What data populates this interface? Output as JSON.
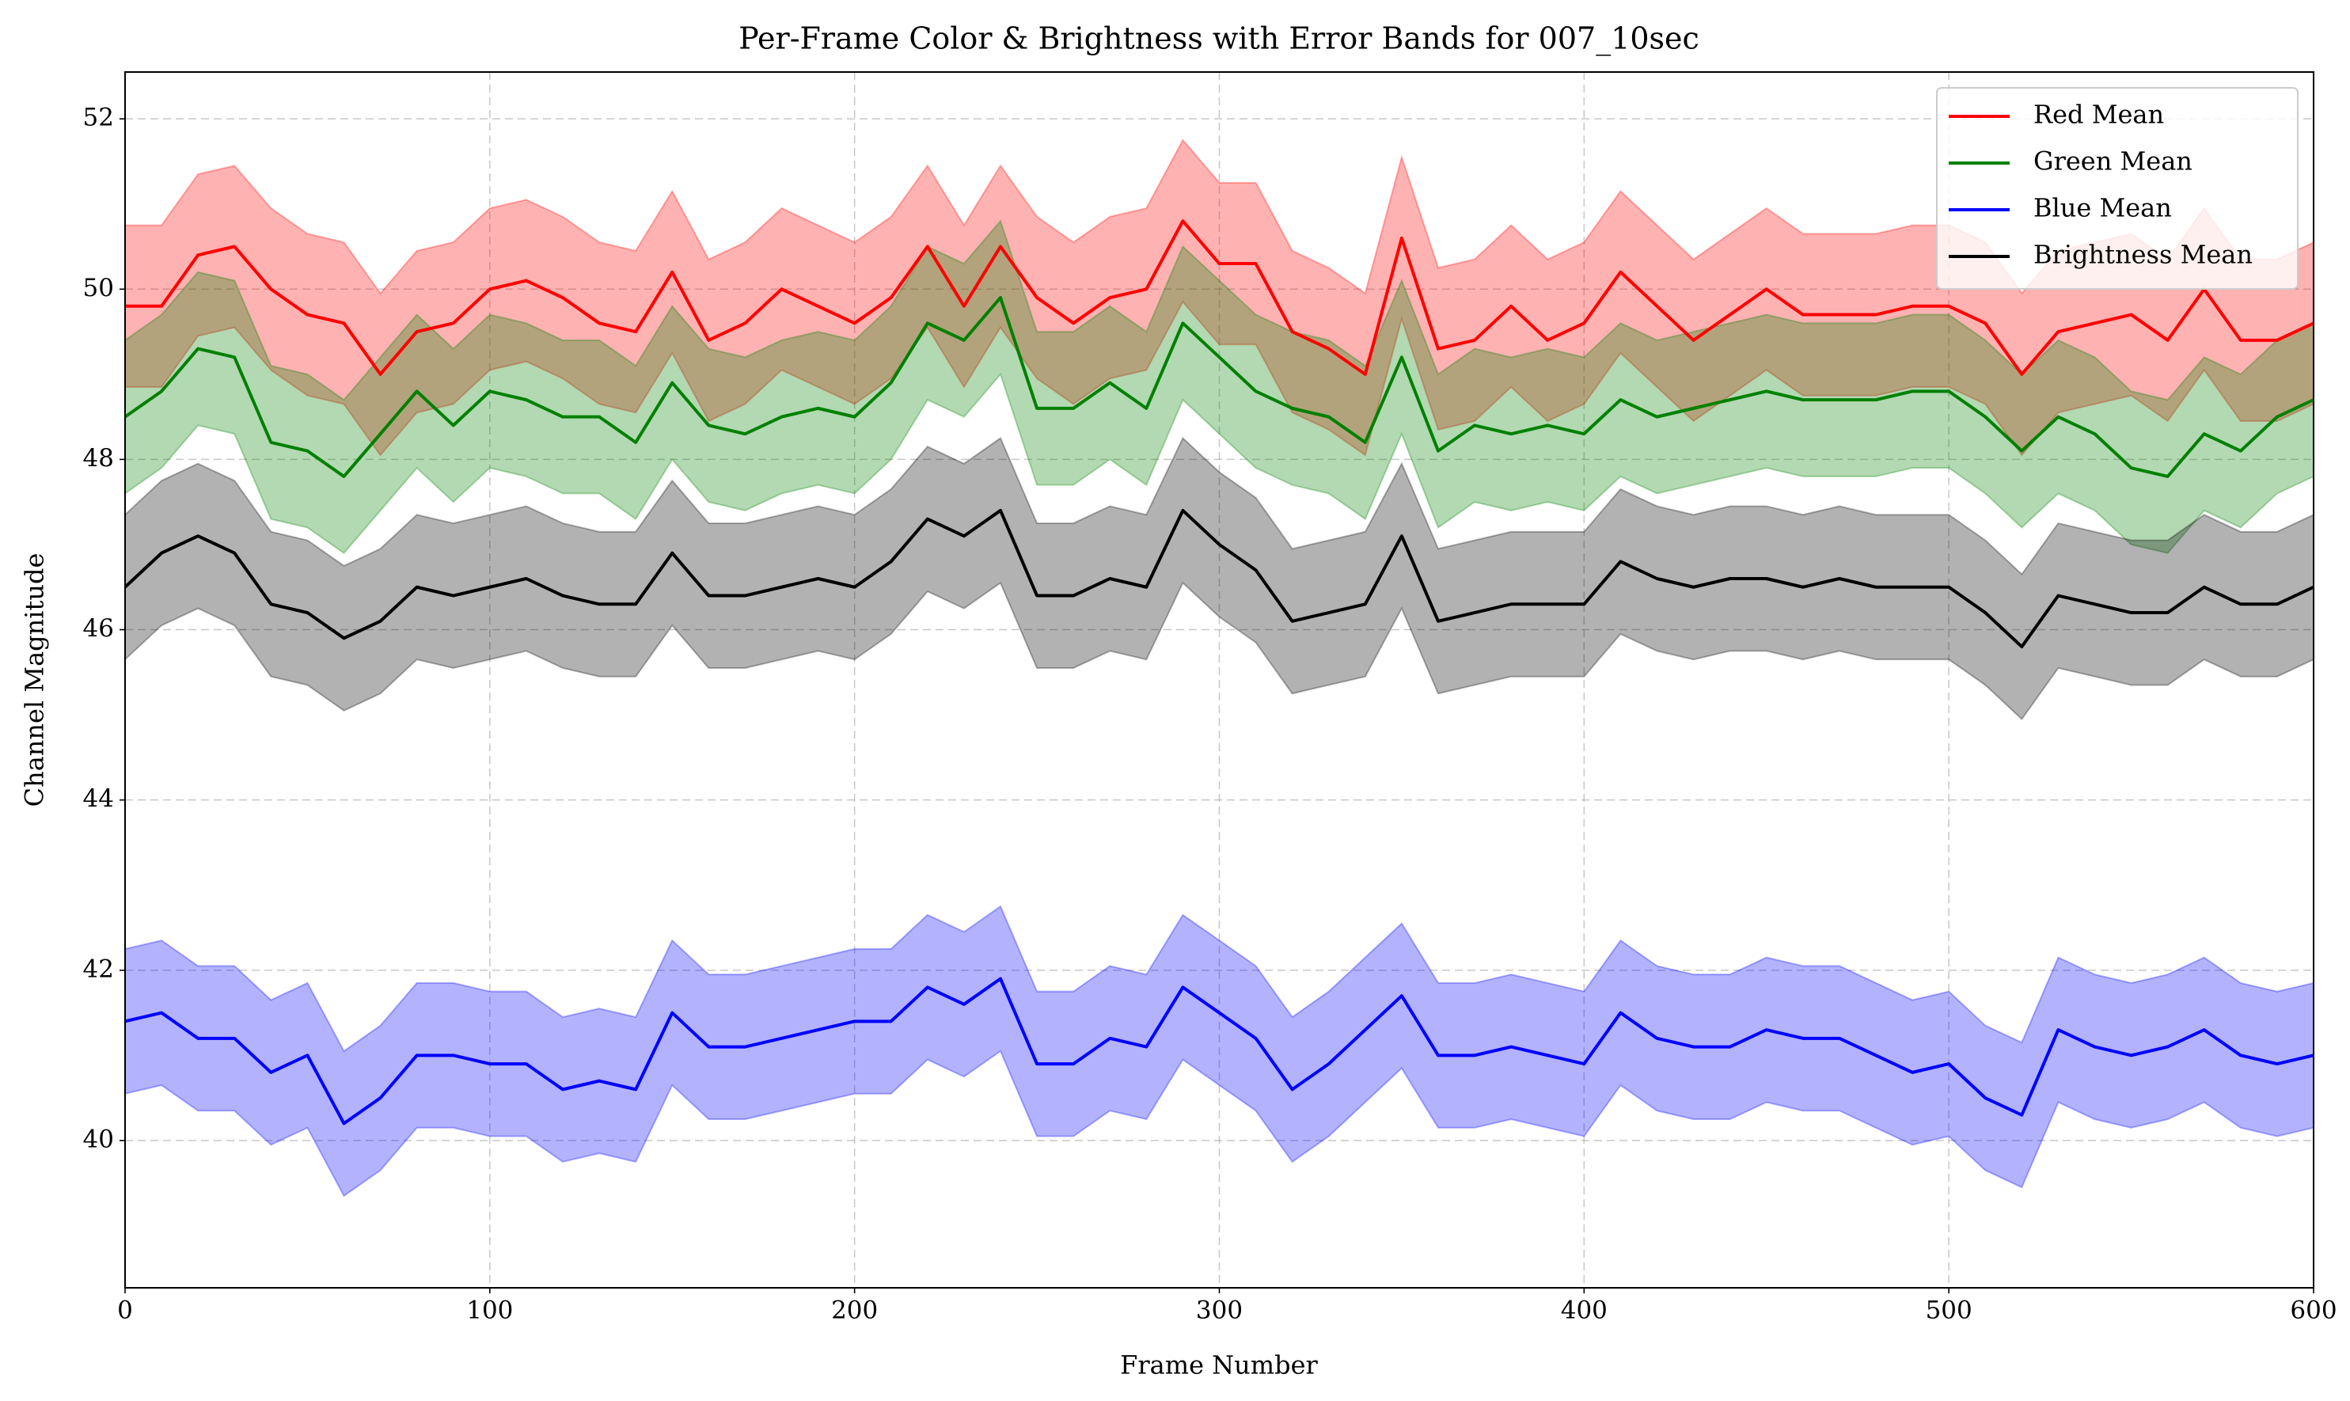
{
  "chart_data": {
    "type": "line",
    "title": "Per-Frame Color & Brightness with Error Bands for 007_10sec",
    "xlabel": "Frame Number",
    "ylabel": "Channel Magnitude",
    "xlim": [
      0,
      600
    ],
    "ylim": [
      38.27,
      52.55
    ],
    "xticks": [
      0,
      100,
      200,
      300,
      400,
      500,
      600
    ],
    "yticks": [
      40,
      42,
      44,
      46,
      48,
      50,
      52
    ],
    "grid": true,
    "legend": "upper right",
    "x": [
      0,
      10,
      20,
      30,
      40,
      50,
      60,
      70,
      80,
      90,
      100,
      110,
      120,
      130,
      140,
      150,
      160,
      170,
      180,
      190,
      200,
      210,
      220,
      230,
      240,
      250,
      260,
      270,
      280,
      290,
      300,
      310,
      320,
      330,
      340,
      350,
      360,
      370,
      380,
      390,
      400,
      410,
      420,
      430,
      440,
      450,
      460,
      470,
      480,
      490,
      500,
      510,
      520,
      530,
      540,
      550,
      560,
      570,
      580,
      590,
      600
    ],
    "series": [
      {
        "name": "Red Mean",
        "color": "#ff0000",
        "values": [
          49.8,
          49.8,
          50.4,
          50.5,
          50.0,
          49.7,
          49.6,
          49.0,
          49.5,
          49.6,
          50.0,
          50.1,
          49.9,
          49.6,
          49.5,
          50.2,
          49.4,
          49.6,
          50.0,
          49.8,
          49.6,
          49.9,
          50.5,
          49.8,
          50.5,
          49.9,
          49.6,
          49.9,
          50.0,
          50.8,
          50.3,
          50.3,
          49.5,
          49.3,
          49.0,
          50.6,
          49.3,
          49.4,
          49.8,
          49.4,
          49.6,
          50.2,
          49.8,
          49.4,
          49.7,
          50.0,
          49.7,
          49.7,
          49.7,
          49.8,
          49.8,
          49.6,
          49.0,
          49.5,
          49.6,
          49.7,
          49.4,
          50.0,
          49.4,
          49.4,
          49.6
        ],
        "errors": [
          0.95,
          0.95,
          0.95,
          0.95,
          0.95,
          0.95,
          0.95,
          0.95,
          0.95,
          0.95,
          0.95,
          0.95,
          0.95,
          0.95,
          0.95,
          0.95,
          0.95,
          0.95,
          0.95,
          0.95,
          0.95,
          0.95,
          0.95,
          0.95,
          0.95,
          0.95,
          0.95,
          0.95,
          0.95,
          0.95,
          0.95,
          0.95,
          0.95,
          0.95,
          0.95,
          0.95,
          0.95,
          0.95,
          0.95,
          0.95,
          0.95,
          0.95,
          0.95,
          0.95,
          0.95,
          0.95,
          0.95,
          0.95,
          0.95,
          0.95,
          0.95,
          0.95,
          0.95,
          0.95,
          0.95,
          0.95,
          0.95,
          0.95,
          0.95,
          0.95,
          0.95
        ]
      },
      {
        "name": "Green Mean",
        "color": "#008000",
        "values": [
          48.5,
          48.8,
          49.3,
          49.2,
          48.2,
          48.1,
          47.8,
          48.3,
          48.8,
          48.4,
          48.8,
          48.7,
          48.5,
          48.5,
          48.2,
          48.9,
          48.4,
          48.3,
          48.5,
          48.6,
          48.5,
          48.9,
          49.6,
          49.4,
          49.9,
          48.6,
          48.6,
          48.9,
          48.6,
          49.6,
          49.2,
          48.8,
          48.6,
          48.5,
          48.2,
          49.2,
          48.1,
          48.4,
          48.3,
          48.4,
          48.3,
          48.7,
          48.5,
          48.6,
          48.7,
          48.8,
          48.7,
          48.7,
          48.7,
          48.8,
          48.8,
          48.5,
          48.1,
          48.5,
          48.3,
          47.9,
          47.8,
          48.3,
          48.1,
          48.5,
          48.7
        ],
        "errors": [
          0.9,
          0.9,
          0.9,
          0.9,
          0.9,
          0.9,
          0.9,
          0.9,
          0.9,
          0.9,
          0.9,
          0.9,
          0.9,
          0.9,
          0.9,
          0.9,
          0.9,
          0.9,
          0.9,
          0.9,
          0.9,
          0.9,
          0.9,
          0.9,
          0.9,
          0.9,
          0.9,
          0.9,
          0.9,
          0.9,
          0.9,
          0.9,
          0.9,
          0.9,
          0.9,
          0.9,
          0.9,
          0.9,
          0.9,
          0.9,
          0.9,
          0.9,
          0.9,
          0.9,
          0.9,
          0.9,
          0.9,
          0.9,
          0.9,
          0.9,
          0.9,
          0.9,
          0.9,
          0.9,
          0.9,
          0.9,
          0.9,
          0.9,
          0.9,
          0.9,
          0.9
        ]
      },
      {
        "name": "Blue Mean",
        "color": "#0000ff",
        "values": [
          41.4,
          41.5,
          41.2,
          41.2,
          40.8,
          41.0,
          40.2,
          40.5,
          41.0,
          41.0,
          40.9,
          40.9,
          40.6,
          40.7,
          40.6,
          41.5,
          41.1,
          41.1,
          41.2,
          41.3,
          41.4,
          41.4,
          41.8,
          41.6,
          41.9,
          40.9,
          40.9,
          41.2,
          41.1,
          41.8,
          41.5,
          41.2,
          40.6,
          40.9,
          41.3,
          41.7,
          41.0,
          41.0,
          41.1,
          41.0,
          40.9,
          41.5,
          41.2,
          41.1,
          41.1,
          41.3,
          41.2,
          41.2,
          41.0,
          40.8,
          40.9,
          40.5,
          40.3,
          41.3,
          41.1,
          41.0,
          41.1,
          41.3,
          41.0,
          40.9,
          41.0
        ],
        "errors": [
          0.85,
          0.85,
          0.85,
          0.85,
          0.85,
          0.85,
          0.85,
          0.85,
          0.85,
          0.85,
          0.85,
          0.85,
          0.85,
          0.85,
          0.85,
          0.85,
          0.85,
          0.85,
          0.85,
          0.85,
          0.85,
          0.85,
          0.85,
          0.85,
          0.85,
          0.85,
          0.85,
          0.85,
          0.85,
          0.85,
          0.85,
          0.85,
          0.85,
          0.85,
          0.85,
          0.85,
          0.85,
          0.85,
          0.85,
          0.85,
          0.85,
          0.85,
          0.85,
          0.85,
          0.85,
          0.85,
          0.85,
          0.85,
          0.85,
          0.85,
          0.85,
          0.85,
          0.85,
          0.85,
          0.85,
          0.85,
          0.85,
          0.85,
          0.85,
          0.85,
          0.85
        ]
      },
      {
        "name": "Brightness Mean",
        "color": "#000000",
        "values": [
          46.5,
          46.9,
          47.1,
          46.9,
          46.3,
          46.2,
          45.9,
          46.1,
          46.5,
          46.4,
          46.5,
          46.6,
          46.4,
          46.3,
          46.3,
          46.9,
          46.4,
          46.4,
          46.5,
          46.6,
          46.5,
          46.8,
          47.3,
          47.1,
          47.4,
          46.4,
          46.4,
          46.6,
          46.5,
          47.4,
          47.0,
          46.7,
          46.1,
          46.2,
          46.3,
          47.1,
          46.1,
          46.2,
          46.3,
          46.3,
          46.3,
          46.8,
          46.6,
          46.5,
          46.6,
          46.6,
          46.5,
          46.6,
          46.5,
          46.5,
          46.5,
          46.2,
          45.8,
          46.4,
          46.3,
          46.2,
          46.2,
          46.5,
          46.3,
          46.3,
          46.5
        ],
        "errors": [
          0.85,
          0.85,
          0.85,
          0.85,
          0.85,
          0.85,
          0.85,
          0.85,
          0.85,
          0.85,
          0.85,
          0.85,
          0.85,
          0.85,
          0.85,
          0.85,
          0.85,
          0.85,
          0.85,
          0.85,
          0.85,
          0.85,
          0.85,
          0.85,
          0.85,
          0.85,
          0.85,
          0.85,
          0.85,
          0.85,
          0.85,
          0.85,
          0.85,
          0.85,
          0.85,
          0.85,
          0.85,
          0.85,
          0.85,
          0.85,
          0.85,
          0.85,
          0.85,
          0.85,
          0.85,
          0.85,
          0.85,
          0.85,
          0.85,
          0.85,
          0.85,
          0.85,
          0.85,
          0.85,
          0.85,
          0.85,
          0.85,
          0.85,
          0.85,
          0.85,
          0.85
        ]
      }
    ]
  }
}
